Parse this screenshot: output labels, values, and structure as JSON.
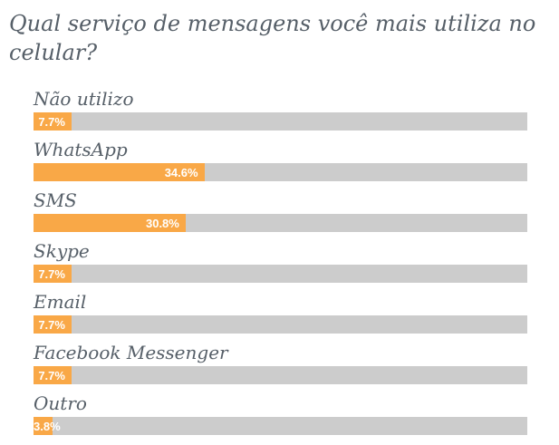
{
  "poll": {
    "question": "Qual serviço de mensagens você mais utiliza no celular?"
  },
  "chart_data": {
    "type": "bar",
    "orientation": "horizontal",
    "title": "Qual serviço de mensagens você mais utiliza no celular?",
    "categories": [
      "Não utilizo",
      "WhatsApp",
      "SMS",
      "Skype",
      "Email",
      "Facebook Messenger",
      "Outro"
    ],
    "values": [
      7.7,
      34.6,
      30.8,
      7.7,
      7.7,
      7.7,
      3.8
    ],
    "value_labels": [
      "7.7%",
      "34.6%",
      "30.8%",
      "7.7%",
      "7.7%",
      "7.7%",
      "3.8%"
    ],
    "xlim": [
      0,
      100
    ],
    "xlabel": "",
    "ylabel": "",
    "grid": false,
    "legend": false,
    "layout": "value label inside right end of filled bar; label overflows bar when fill too narrow",
    "colors": {
      "bar_fill": "#F9A847",
      "bar_track": "#CCCCCC",
      "label_text": "#565F68",
      "value_text": "#FFFFFF",
      "background": "#FFFFFF"
    }
  }
}
